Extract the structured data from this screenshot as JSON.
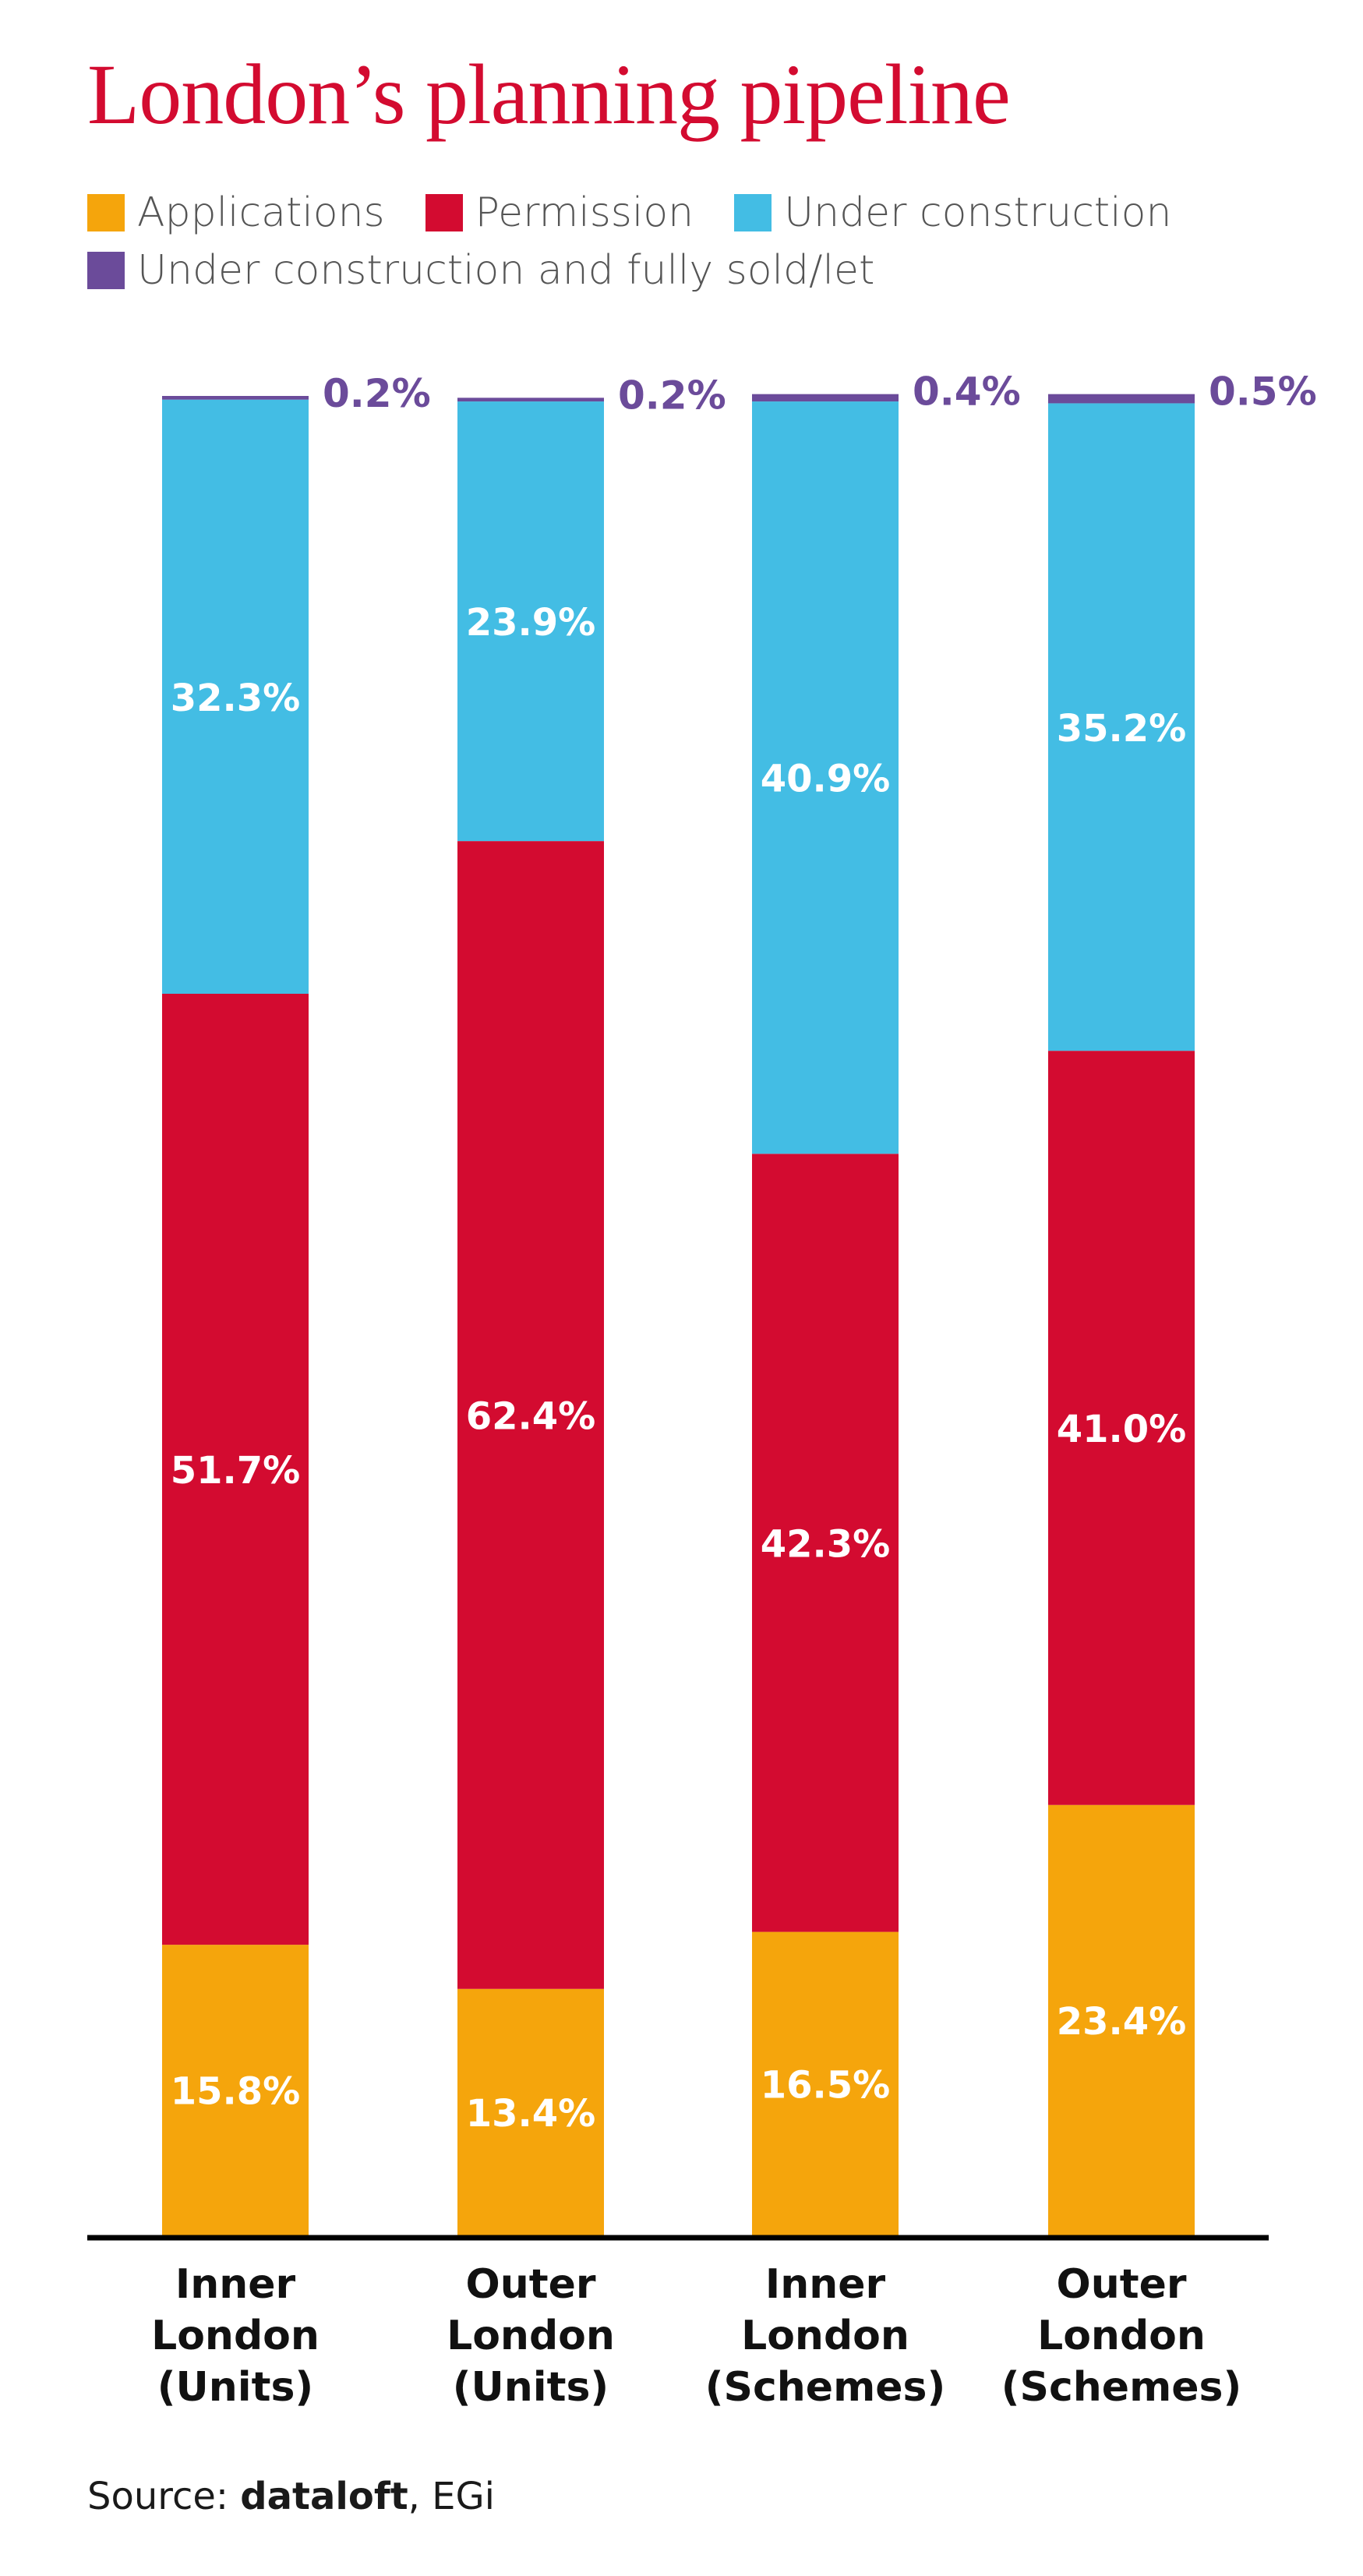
{
  "chart_data": {
    "type": "bar",
    "stacked": true,
    "percent": true,
    "title": "London’s planning pipeline",
    "categories": [
      [
        "Inner",
        "London",
        "(Units)"
      ],
      [
        "Outer",
        "London",
        "(Units)"
      ],
      [
        "Inner",
        "London",
        "(Schemes)"
      ],
      [
        "Outer",
        "London",
        "(Schemes)"
      ]
    ],
    "series": [
      {
        "name": "Applications",
        "color": "#f5a50c",
        "values": [
          15.8,
          13.4,
          16.5,
          23.4
        ],
        "labels": [
          "15.8%",
          "13.4%",
          "16.5%",
          "23.4%"
        ]
      },
      {
        "name": "Permission",
        "color": "#d30b30",
        "values": [
          51.7,
          62.4,
          42.3,
          41.0
        ],
        "labels": [
          "51.7%",
          "62.4%",
          "42.3%",
          "41.0%"
        ]
      },
      {
        "name": "Under construction",
        "color": "#43bde4",
        "values": [
          32.3,
          23.9,
          40.9,
          35.2
        ],
        "labels": [
          "32.3%",
          "23.9%",
          "40.9%",
          "35.2%"
        ]
      },
      {
        "name": "Under construction and fully sold/let",
        "color": "#6b4b9a",
        "values": [
          0.2,
          0.2,
          0.4,
          0.5
        ],
        "labels": [
          "0.2%",
          "0.2%",
          "0.4%",
          "0.5%"
        ]
      }
    ],
    "ylim": [
      0,
      100
    ],
    "legend_position": "top",
    "grid": false
  },
  "source": {
    "prefix": "Source:",
    "brand": "dataloft",
    "suffix": ", EGi"
  }
}
